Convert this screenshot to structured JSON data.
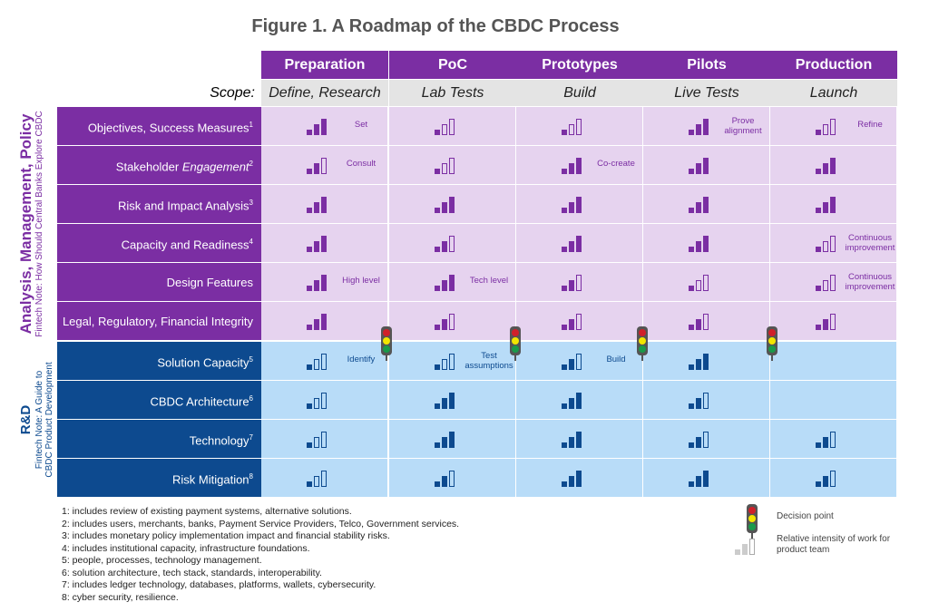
{
  "title": "Figure 1. A Roadmap of the CBDC Process",
  "scope_label": "Scope:",
  "phases": [
    {
      "name": "Preparation",
      "scope": "Define, Research"
    },
    {
      "name": "PoC",
      "scope": "Lab Tests"
    },
    {
      "name": "Prototypes",
      "scope": "Build"
    },
    {
      "name": "Pilots",
      "scope": "Live Tests"
    },
    {
      "name": "Production",
      "scope": "Launch"
    }
  ],
  "groups": [
    {
      "title": "Analysis, Management, Policy",
      "subtitle": "Fintech Note: How Should Central Banks Explore CBDC",
      "label_color": "#7b2ea3",
      "cell_color": "#e6d3ef",
      "bar_color": "#7b2ea3"
    },
    {
      "title": "R&D",
      "subtitle": "Fintech Note: A Guide to CBDC Product Development",
      "label_color": "#0d4a8f",
      "cell_color": "#b8dcf8",
      "bar_color": "#0d4a8f"
    }
  ],
  "rows": [
    {
      "group": 0,
      "label": "Objectives, Success Measures",
      "sup": "1",
      "intensity": [
        3,
        1,
        1,
        3,
        1
      ],
      "notes": [
        "Set",
        "",
        "",
        "Prove alignment",
        "Refine"
      ]
    },
    {
      "group": 0,
      "label": "Stakeholder",
      "label_italic": "Engagement",
      "sup": "2",
      "intensity": [
        2,
        1,
        3,
        3,
        3
      ],
      "notes": [
        "Consult",
        "",
        "Co-create",
        "",
        ""
      ]
    },
    {
      "group": 0,
      "label": "Risk and Impact Analysis",
      "sup": "3",
      "intensity": [
        3,
        3,
        3,
        3,
        3
      ],
      "notes": [
        "",
        "",
        "",
        "",
        ""
      ]
    },
    {
      "group": 0,
      "label": "Capacity and Readiness",
      "sup": "4",
      "intensity": [
        3,
        2,
        3,
        3,
        1
      ],
      "notes": [
        "",
        "",
        "",
        "",
        "Continuous improvement"
      ]
    },
    {
      "group": 0,
      "label": "Design Features",
      "sup": "",
      "intensity": [
        3,
        3,
        2,
        1,
        1
      ],
      "notes": [
        "High level",
        "Tech level",
        "",
        "",
        "Continuous improvement"
      ]
    },
    {
      "group": 0,
      "label": "Legal, Regulatory, Financial Integrity",
      "sup": "",
      "intensity": [
        3,
        2,
        2,
        2,
        2
      ],
      "notes": [
        "",
        "",
        "",
        "",
        ""
      ]
    },
    {
      "group": 1,
      "label": "Solution Capacity",
      "sup": "5",
      "intensity": [
        1,
        1,
        2,
        3,
        0
      ],
      "notes": [
        "Identify",
        "Test assumptions",
        "Build",
        "",
        ""
      ]
    },
    {
      "group": 1,
      "label": "CBDC Architecture",
      "sup": "6",
      "intensity": [
        1,
        3,
        3,
        2,
        0
      ],
      "notes": [
        "",
        "",
        "",
        "",
        ""
      ]
    },
    {
      "group": 1,
      "label": "Technology",
      "sup": "7",
      "intensity": [
        1,
        3,
        3,
        2,
        2
      ],
      "notes": [
        "",
        "",
        "",
        "",
        ""
      ]
    },
    {
      "group": 1,
      "label": "Risk Mitigation",
      "sup": "8",
      "intensity": [
        1,
        2,
        3,
        3,
        2
      ],
      "notes": [
        "",
        "",
        "",
        "",
        ""
      ]
    }
  ],
  "footnotes": [
    "1: includes review of existing payment systems, alternative solutions.",
    "2: includes users, merchants, banks, Payment Service Providers, Telco, Government services.",
    "3: includes monetary policy implementation impact and financial stability risks.",
    "4: includes institutional capacity, infrastructure foundations.",
    "5: people, processes, technology management.",
    "6: solution architecture, tech stack, standards, interoperability.",
    "7: includes ledger technology, databases, platforms, wallets, cybersecurity.",
    "8: cyber security, resilience."
  ],
  "legend": {
    "decision_point": "Decision point",
    "intensity": "Relative intensity of work for product team"
  },
  "colors": {
    "traffic_red": "#d0202a",
    "traffic_yellow": "#f2e600",
    "traffic_green": "#1a9a4a"
  }
}
